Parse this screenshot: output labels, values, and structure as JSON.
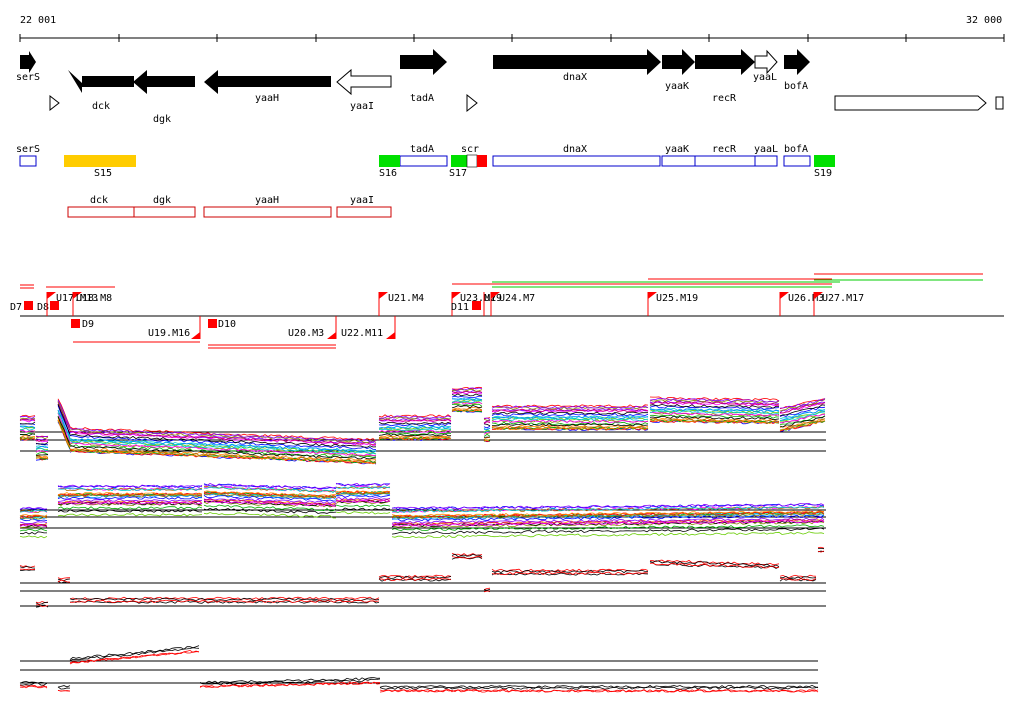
{
  "axis": {
    "start_label": "22 001",
    "end_label": "32 000"
  },
  "colors": {
    "gene_fill": "#000000",
    "gene_outline": "#000000",
    "box_blue": "#0000cc",
    "box_red": "#cc0000",
    "segment_green": "#00e000",
    "segment_orange": "#ffcc00",
    "marker_red": "#ff0000",
    "fwd_line": "#00cc00",
    "rev_line": "#ff0000",
    "trace_black": "#000000",
    "trace_red": "#ff0000"
  },
  "genes": [
    {
      "label": "serS",
      "strand": "+",
      "filled": true
    },
    {
      "label": "dck",
      "strand": "-",
      "filled": true
    },
    {
      "label": "dgk",
      "strand": "-",
      "filled": true
    },
    {
      "label": "yaaH",
      "strand": "-",
      "filled": true
    },
    {
      "label": "yaaI",
      "strand": "-",
      "filled": false
    },
    {
      "label": "tadA",
      "strand": "+",
      "filled": true
    },
    {
      "label": "dnaX",
      "strand": "+",
      "filled": true
    },
    {
      "label": "yaaK",
      "strand": "+",
      "filled": true
    },
    {
      "label": "recR",
      "strand": "+",
      "filled": true
    },
    {
      "label": "yaaL",
      "strand": "+",
      "filled": false
    },
    {
      "label": "bofA",
      "strand": "+",
      "filled": true
    }
  ],
  "blue_boxes": [
    "serS",
    "tadA",
    "dnaX",
    "yaaK",
    "recR",
    "yaaL",
    "bofA"
  ],
  "red_boxes": [
    "dck",
    "dgk",
    "yaaH",
    "yaaI"
  ],
  "segments": [
    {
      "label": "S15",
      "color": "orange"
    },
    {
      "label": "S16",
      "color": "green"
    },
    {
      "label": "S17",
      "color": "green"
    },
    {
      "label": "scr",
      "color": "mixed"
    },
    {
      "label": "S19",
      "color": "green"
    }
  ],
  "markers_top": [
    "D7",
    "D8",
    "U17.M13",
    "U18.M8",
    "U21.M4",
    "U23.M1",
    "D11",
    "U29",
    "U24.M7",
    "U25.M19",
    "U26.M3",
    "U27.M17"
  ],
  "markers_bottom": [
    "D9",
    "U19.M16",
    "D10",
    "U20.M3",
    "U22.M11"
  ]
}
